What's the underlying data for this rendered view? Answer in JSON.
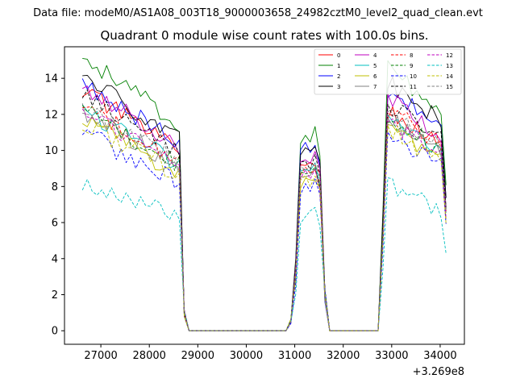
{
  "suptitle": "Data file: modeM0/AS1A08_003T18_9000003658_24982cztM0_level2_quad_clean.evt",
  "chart_data": {
    "type": "line",
    "title": "Quadrant 0 module wise count rates with 100.0s bins.",
    "xlabel": "",
    "ylabel": "",
    "x_offset_label": "+3.269e8",
    "xlim": [
      26250,
      34500
    ],
    "ylim": [
      -0.75,
      15.75
    ],
    "x_ticks": [
      27000,
      28000,
      29000,
      30000,
      31000,
      32000,
      33000,
      34000
    ],
    "x_tick_labels": [
      "27000",
      "28000",
      "29000",
      "30000",
      "31000",
      "32000",
      "33000",
      "34000"
    ],
    "y_ticks": [
      0,
      2,
      4,
      6,
      8,
      10,
      12,
      14
    ],
    "y_tick_labels": [
      "0",
      "2",
      "4",
      "6",
      "8",
      "10",
      "12",
      "14"
    ],
    "grid": false,
    "legend_position": "upper-right",
    "legend_columns": 4,
    "segments": [
      {
        "start": 26620,
        "bins": 21
      },
      {
        "start": 28720,
        "bins": 1
      },
      {
        "start": 28820,
        "bins": 21
      },
      {
        "start": 30920,
        "bins": 8
      },
      {
        "start": 31720,
        "bins": 7
      },
      {
        "start": 32420,
        "bins": 3
      },
      {
        "start": 32720,
        "bins": 15
      }
    ],
    "series": [
      {
        "name": "0",
        "color": "#ff0000",
        "dash": "solid",
        "level": 11.9,
        "burst2": 9.4,
        "burst3": 12.2
      },
      {
        "name": "1",
        "color": "#008000",
        "dash": "solid",
        "level": 13.6,
        "burst2": 11.0,
        "burst3": 14.6
      },
      {
        "name": "2",
        "color": "#0000ff",
        "dash": "solid",
        "level": 12.3,
        "burst2": 10.5,
        "burst3": 13.4
      },
      {
        "name": "3",
        "color": "#000000",
        "dash": "solid",
        "level": 12.6,
        "burst2": 10.2,
        "burst3": 13.9
      },
      {
        "name": "4",
        "color": "#bf00bf",
        "dash": "solid",
        "level": 12.1,
        "burst2": 9.9,
        "burst3": 13.0
      },
      {
        "name": "5",
        "color": "#00bfbf",
        "dash": "solid",
        "level": 11.0,
        "burst2": 9.1,
        "burst3": 12.0
      },
      {
        "name": "6",
        "color": "#bfbf00",
        "dash": "solid",
        "level": 10.4,
        "burst2": 8.6,
        "burst3": 11.3
      },
      {
        "name": "7",
        "color": "#808080",
        "dash": "solid",
        "level": 10.9,
        "burst2": 9.0,
        "burst3": 11.8
      },
      {
        "name": "8",
        "color": "#ff0000",
        "dash": "dashed",
        "level": 11.3,
        "burst2": 9.2,
        "burst3": 12.3
      },
      {
        "name": "9",
        "color": "#008000",
        "dash": "dashed",
        "level": 11.0,
        "burst2": 9.0,
        "burst3": 12.0
      },
      {
        "name": "10",
        "color": "#0000ff",
        "dash": "dashed",
        "level": 9.8,
        "burst2": 8.2,
        "burst3": 10.8
      },
      {
        "name": "11",
        "color": "#000000",
        "dash": "dashed",
        "level": 11.6,
        "burst2": 9.6,
        "burst3": 12.6
      },
      {
        "name": "12",
        "color": "#bf00bf",
        "dash": "dashed",
        "level": 10.8,
        "burst2": 9.0,
        "burst3": 11.7
      },
      {
        "name": "13",
        "color": "#00bfbf",
        "dash": "dashed",
        "level": 7.4,
        "burst2": 6.6,
        "burst3": 8.0
      },
      {
        "name": "14",
        "color": "#bfbf00",
        "dash": "dashed",
        "level": 10.3,
        "burst2": 8.5,
        "burst3": 11.2
      },
      {
        "name": "15",
        "color": "#808080",
        "dash": "dashed",
        "level": 11.2,
        "burst2": 9.3,
        "burst3": 12.1
      }
    ]
  }
}
